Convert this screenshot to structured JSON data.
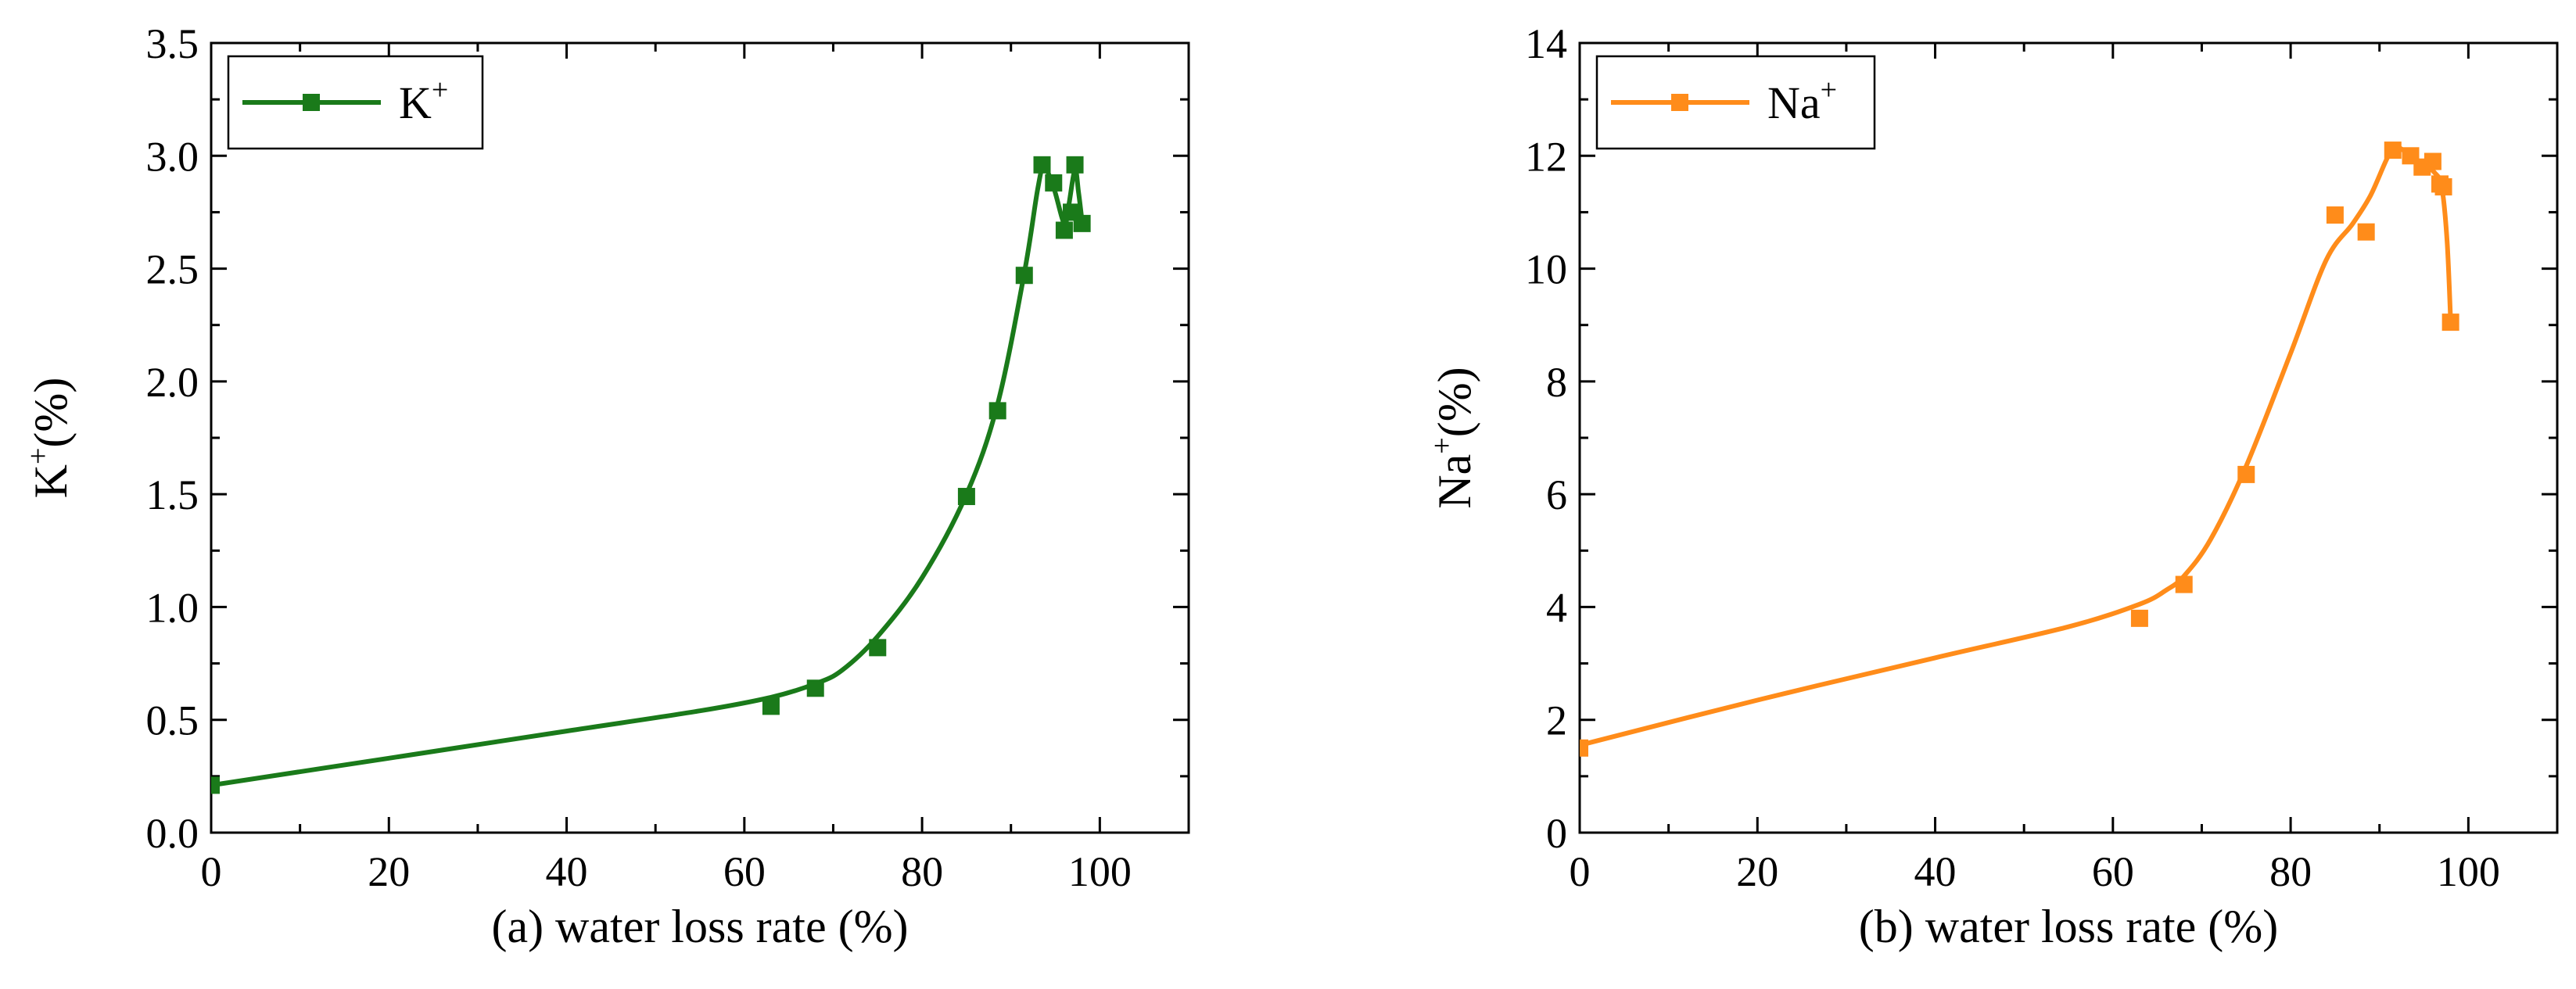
{
  "chart_data": [
    {
      "type": "scatter",
      "panel": "a",
      "xlabel": "(a) water loss rate (%)",
      "ylabel": "K⁺(%)",
      "ylabel_base": "K",
      "ylabel_sup": "+",
      "ylabel_tail": "(%)",
      "xlim": [
        0,
        110
      ],
      "ylim": [
        0,
        3.5
      ],
      "xticks": [
        0,
        20,
        40,
        60,
        80,
        100
      ],
      "xtick_labels": [
        "0",
        "20",
        "40",
        "60",
        "80",
        "100"
      ],
      "yticks": [
        0,
        0.5,
        1.0,
        1.5,
        2.0,
        2.5,
        3.0,
        3.5
      ],
      "ytick_labels": [
        "0.0",
        "0.5",
        "1.0",
        "1.5",
        "2.0",
        "2.5",
        "3.0",
        "3.5"
      ],
      "color": "#1a7a1a",
      "legend": {
        "label": "K⁺",
        "base": "K",
        "sup": "+",
        "position": "top-left"
      },
      "series": [
        {
          "name": "K⁺",
          "x": [
            0,
            63,
            68,
            75,
            85,
            88.5,
            91.5,
            93.5,
            94.8,
            96,
            96.8,
            97.2,
            98
          ],
          "y": [
            0.21,
            0.56,
            0.64,
            0.82,
            1.49,
            1.87,
            2.47,
            2.96,
            2.88,
            2.67,
            2.75,
            2.96,
            2.7
          ]
        }
      ],
      "fit_curve": {
        "x": [
          0,
          20,
          40,
          55,
          63,
          68,
          71,
          75,
          80,
          85,
          88.5,
          91.5,
          93,
          93.7,
          94.8,
          96,
          96.5,
          97.2,
          97.6,
          98
        ],
        "y": [
          0.21,
          0.33,
          0.45,
          0.54,
          0.6,
          0.66,
          0.72,
          0.87,
          1.13,
          1.5,
          1.9,
          2.48,
          2.85,
          2.95,
          2.86,
          2.7,
          2.78,
          2.94,
          2.84,
          2.71
        ]
      }
    },
    {
      "type": "scatter",
      "panel": "b",
      "xlabel": "(b) water loss rate (%)",
      "ylabel": "Na⁺(%)",
      "ylabel_base": "Na",
      "ylabel_sup": "+",
      "ylabel_tail": "(%)",
      "xlim": [
        0,
        110
      ],
      "ylim": [
        0,
        14
      ],
      "xticks": [
        0,
        20,
        40,
        60,
        80,
        100
      ],
      "xtick_labels": [
        "0",
        "20",
        "40",
        "60",
        "80",
        "100"
      ],
      "yticks": [
        0,
        2,
        4,
        6,
        8,
        10,
        12,
        14
      ],
      "ytick_labels": [
        "0",
        "2",
        "4",
        "6",
        "8",
        "10",
        "12",
        "14"
      ],
      "color": "#ff8c1a",
      "legend": {
        "label": "Na⁺",
        "base": "Na",
        "sup": "+",
        "position": "top-left"
      },
      "series": [
        {
          "name": "Na⁺",
          "x": [
            0,
            63,
            68,
            75,
            85,
            88.5,
            91.5,
            93.5,
            94.8,
            96,
            96.8,
            97.2,
            98
          ],
          "y": [
            1.5,
            3.8,
            4.4,
            6.35,
            10.95,
            10.65,
            12.1,
            12.0,
            11.8,
            11.9,
            11.5,
            11.45,
            9.05
          ]
        }
      ],
      "fit_curve": {
        "x": [
          0,
          20,
          40,
          55,
          63,
          66,
          68,
          71,
          75,
          80,
          84,
          87,
          89,
          91,
          92,
          93.5,
          95,
          96.2,
          97,
          97.6,
          98
        ],
        "y": [
          1.55,
          2.35,
          3.1,
          3.65,
          4.05,
          4.3,
          4.55,
          5.2,
          6.5,
          8.5,
          10.15,
          10.8,
          11.3,
          12.0,
          12.15,
          12.0,
          11.85,
          11.7,
          11.45,
          10.5,
          9.1
        ]
      }
    }
  ]
}
